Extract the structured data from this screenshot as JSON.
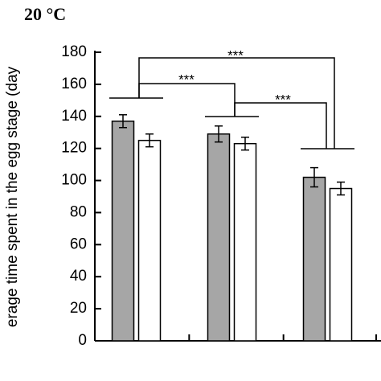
{
  "chart_data": {
    "type": "bar",
    "title": "20 °C",
    "y_label": "erage time spent in the egg stage (day",
    "categories": [
      null,
      null,
      null
    ],
    "series": [
      {
        "color": "#a6a6a6",
        "values": [
          137,
          129,
          102
        ],
        "errors": [
          4,
          5,
          6
        ]
      },
      {
        "color": "#ffffff",
        "values": [
          125,
          123,
          95
        ],
        "errors": [
          4,
          4,
          4
        ]
      }
    ],
    "ylim": [
      0,
      180
    ],
    "yticks": [
      0,
      20,
      40,
      60,
      80,
      100,
      120,
      140,
      160,
      180
    ],
    "annotations": [
      "***",
      "***",
      "***"
    ]
  }
}
